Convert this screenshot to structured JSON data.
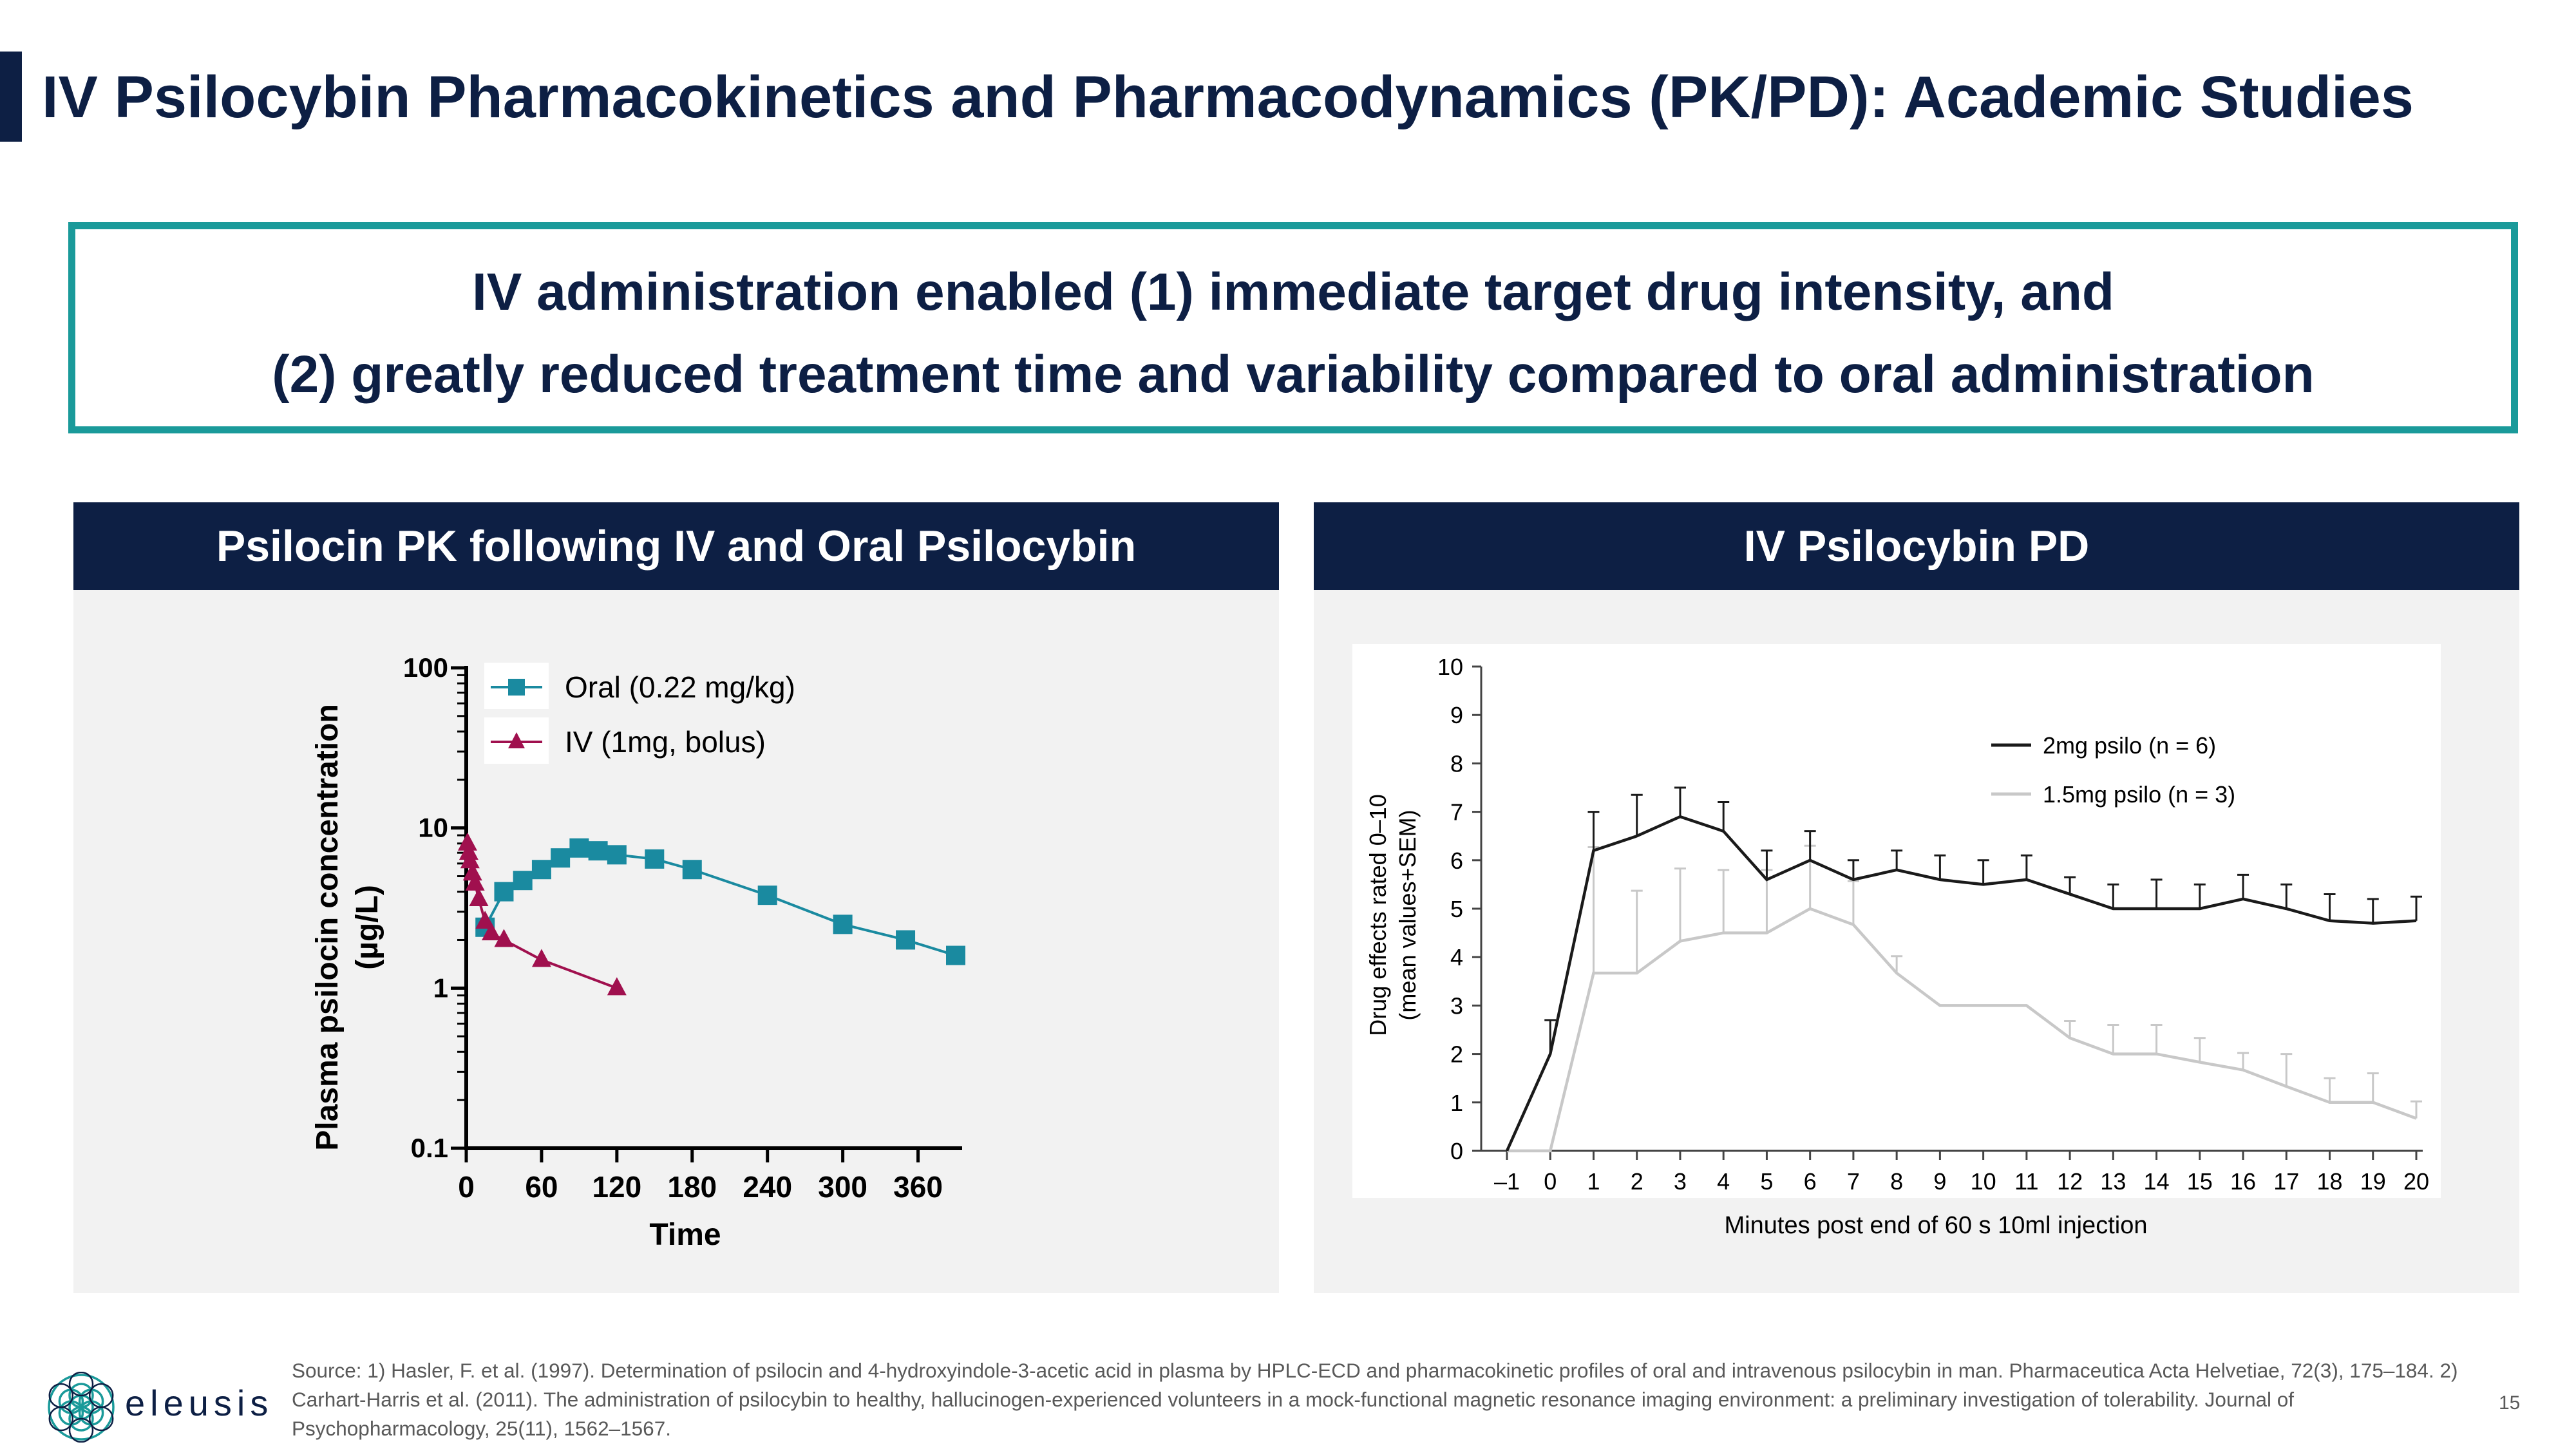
{
  "page": {
    "title": "IV Psilocybin Pharmacokinetics and Pharmacodynamics (PK/PD): Academic Studies",
    "callout_line1": "IV administration enabled (1) immediate target drug intensity, and",
    "callout_line2": "(2) greatly reduced treatment time and variability compared to oral administration",
    "page_number": "15",
    "logo_text": "eleusis",
    "source": "Source: 1) Hasler, F. et al. (1997). Determination of psilocin and 4-hydroxyindole-3-acetic acid in plasma by HPLC-ECD and pharmacokinetic profiles of oral and intravenous psilocybin in man. Pharmaceutica Acta Helvetiae, 72(3), 175–184. 2) Carhart-Harris et al. (2011). The administration of psilocybin to healthy, hallucinogen-experienced volunteers in a mock-functional magnetic resonance imaging environment: a preliminary investigation of tolerability. Journal of Psychopharmacology, 25(11), 1562–1567.",
    "colors": {
      "navy": "#0d1f44",
      "teal": "#1a9a9a",
      "oral": "#1a8aa0",
      "iv": "#a0104e"
    }
  },
  "chart_data": [
    {
      "type": "line",
      "panel_title": "Psilocin PK following IV and Oral Psilocybin",
      "xlabel": "Time",
      "ylabel": "Plasma psilocin concentration (µg/L)",
      "yscale": "log",
      "ylim": [
        0.1,
        100
      ],
      "xlim": [
        0,
        390
      ],
      "xticks": [
        0,
        60,
        120,
        180,
        240,
        300,
        360
      ],
      "yticks": [
        0.1,
        1,
        10,
        100
      ],
      "ytick_labels": [
        "0.1",
        "1",
        "10",
        "100"
      ],
      "legend": "top-left",
      "series": [
        {
          "name": "Oral (0.22 mg/kg)",
          "marker": "square",
          "color": "#1a8aa0",
          "x": [
            15,
            30,
            45,
            60,
            75,
            90,
            105,
            120,
            150,
            180,
            240,
            300,
            350,
            390
          ],
          "y": [
            2.4,
            4.0,
            4.7,
            5.5,
            6.5,
            7.5,
            7.2,
            6.8,
            6.4,
            5.5,
            3.8,
            2.5,
            2.0,
            1.6
          ]
        },
        {
          "name": "IV (1mg, bolus)",
          "marker": "triangle",
          "color": "#a0104e",
          "x": [
            1,
            2,
            3,
            5,
            7,
            10,
            15,
            20,
            30,
            60,
            120
          ],
          "y": [
            8.0,
            7.0,
            6.2,
            5.2,
            4.5,
            3.6,
            2.6,
            2.2,
            2.0,
            1.5,
            1.0
          ]
        }
      ]
    },
    {
      "type": "line",
      "panel_title": "IV Psilocybin PD",
      "xlabel": "Minutes post end of 60 s 10ml injection",
      "ylabel": "Drug effects rated 0–10 (mean values+SEM)",
      "ylim": [
        0,
        10
      ],
      "xlim": [
        -1,
        20
      ],
      "xticks": [
        -1,
        0,
        1,
        2,
        3,
        4,
        5,
        6,
        7,
        8,
        9,
        10,
        11,
        12,
        13,
        14,
        15,
        16,
        17,
        18,
        19,
        20
      ],
      "xtick_labels": [
        "–1",
        "0",
        "1",
        "2",
        "3",
        "4",
        "5",
        "6",
        "7",
        "8",
        "9",
        "10",
        "11",
        "12",
        "13",
        "14",
        "15",
        "16",
        "17",
        "18",
        "19",
        "20"
      ],
      "yticks": [
        0,
        1,
        2,
        3,
        4,
        5,
        6,
        7,
        8,
        9,
        10
      ],
      "legend": "top-right",
      "series": [
        {
          "name": "2mg psilo (n = 6)",
          "color": "#1a1a1a",
          "x": [
            -1,
            0,
            1,
            2,
            3,
            4,
            5,
            6,
            7,
            8,
            9,
            10,
            11,
            12,
            13,
            14,
            15,
            16,
            17,
            18,
            19,
            20
          ],
          "y": [
            0,
            2.0,
            6.2,
            6.5,
            6.9,
            6.6,
            5.6,
            6.0,
            5.6,
            5.8,
            5.6,
            5.5,
            5.6,
            5.3,
            5.0,
            5.0,
            5.0,
            5.2,
            5.0,
            4.75,
            4.7,
            4.75
          ],
          "sem": [
            0,
            0.7,
            0.8,
            0.85,
            0.6,
            0.6,
            0.6,
            0.6,
            0.4,
            0.4,
            0.5,
            0.5,
            0.5,
            0.35,
            0.5,
            0.6,
            0.5,
            0.5,
            0.5,
            0.55,
            0.5,
            0.5
          ]
        },
        {
          "name": "1.5mg psilo (n = 3)",
          "color": "#c8c8c8",
          "x": [
            -1,
            0,
            1,
            2,
            3,
            4,
            5,
            6,
            7,
            8,
            9,
            10,
            11,
            12,
            13,
            14,
            15,
            16,
            17,
            18,
            19,
            20
          ],
          "y": [
            0,
            0,
            3.67,
            3.67,
            4.33,
            4.5,
            4.5,
            5.0,
            4.67,
            3.67,
            3.0,
            3.0,
            3.0,
            2.33,
            2.0,
            2.0,
            1.83,
            1.67,
            1.33,
            1.0,
            1.0,
            0.67
          ],
          "sem": [
            0,
            0,
            2.6,
            1.7,
            1.5,
            1.3,
            1.3,
            1.3,
            0.9,
            0.35,
            0,
            0,
            0,
            0.35,
            0.6,
            0.6,
            0.5,
            0.35,
            0.67,
            0.5,
            0.6,
            0.35
          ]
        }
      ]
    }
  ]
}
